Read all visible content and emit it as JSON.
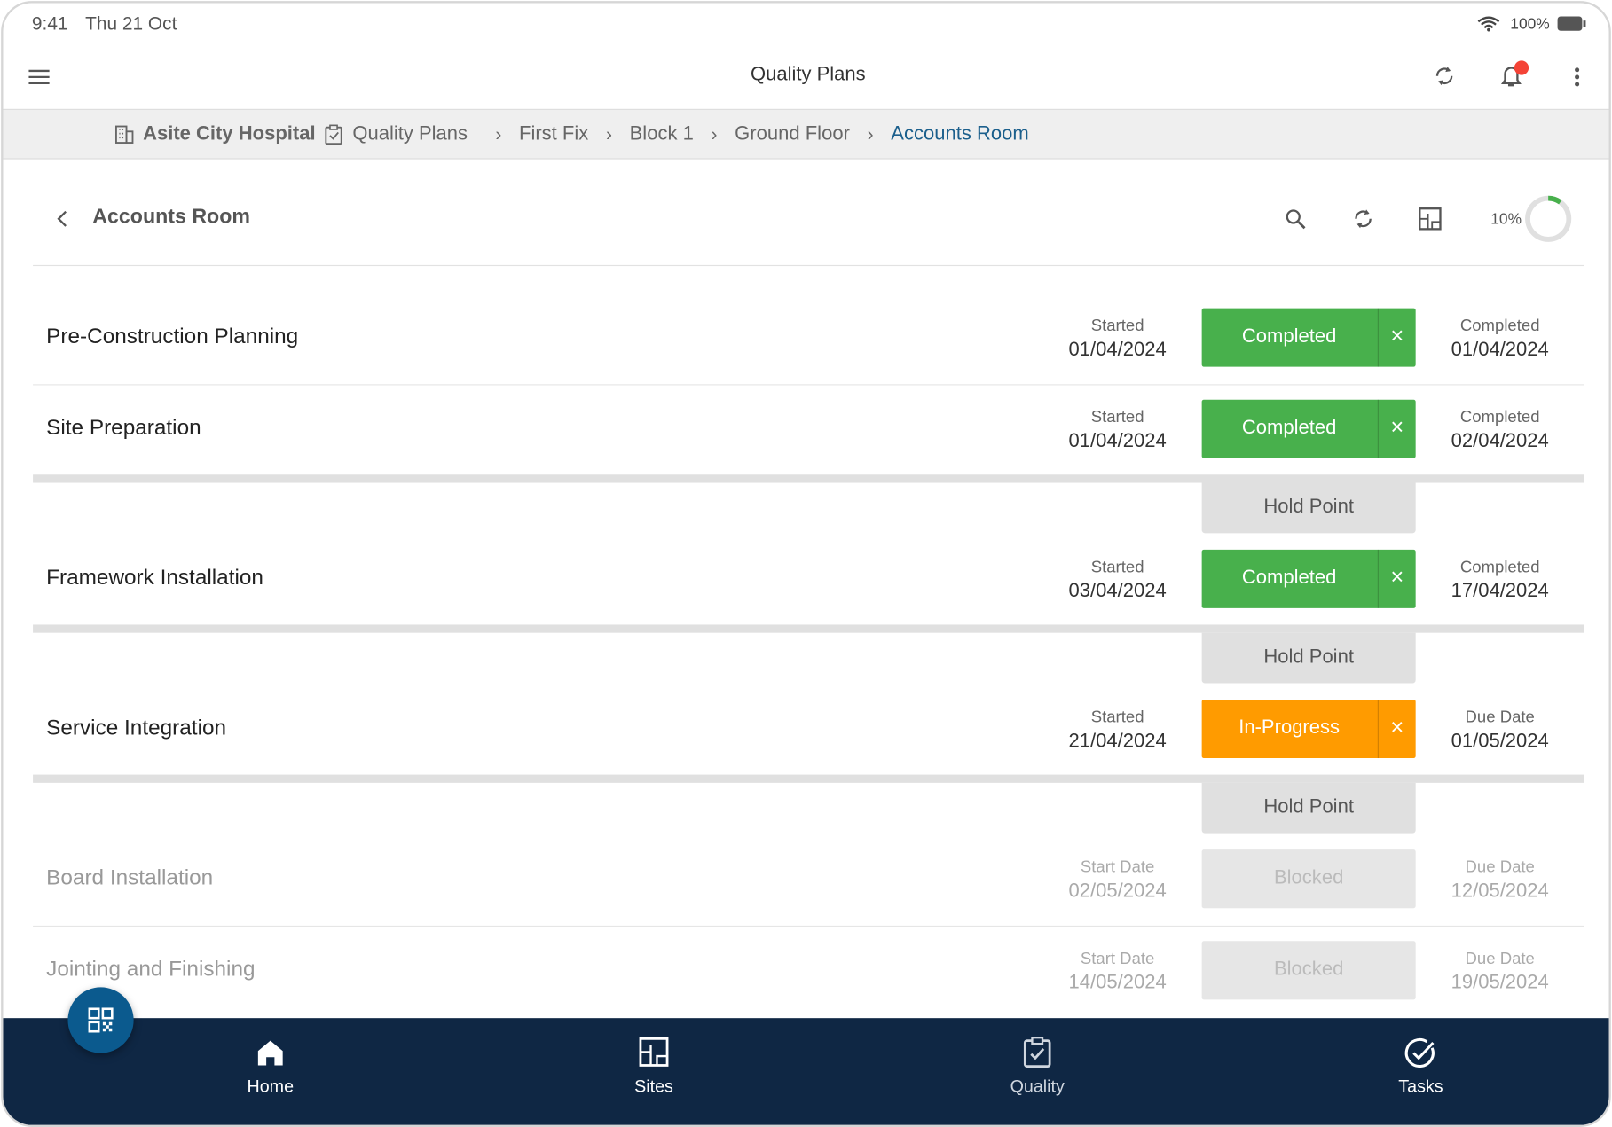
{
  "status_bar": {
    "time": "9:41",
    "date": "Thu 21 Oct",
    "battery": "100%"
  },
  "header": {
    "title": "Quality Plans"
  },
  "breadcrumb": [
    "Asite City Hospital",
    "Quality Plans",
    "First Fix",
    "Block 1",
    "Ground Floor",
    "Accounts Room"
  ],
  "subheader": {
    "title": "Accounts Room",
    "progress": {
      "value": 10,
      "label": "10%"
    }
  },
  "rows": [
    {
      "name": "Pre-Construction Planning",
      "start_label": "Started",
      "start_date": "01/04/2024",
      "status": "Completed",
      "color": "#48b04c",
      "end_label": "Completed",
      "end_date": "01/04/2024"
    },
    {
      "name": "Site Preparation",
      "start_label": "Started",
      "start_date": "01/04/2024",
      "status": "Completed",
      "color": "#48b04c",
      "end_label": "Completed",
      "end_date": "02/04/2024",
      "hold_point": "Hold Point"
    },
    {
      "name": "Framework Installation",
      "start_label": "Started",
      "start_date": "03/04/2024",
      "status": "Completed",
      "color": "#48b04c",
      "end_label": "Completed",
      "end_date": "17/04/2024",
      "hold_point": "Hold Point"
    },
    {
      "name": "Service Integration",
      "start_label": "Started",
      "start_date": "21/04/2024",
      "status": "In-Progress",
      "color": "#ff9b00",
      "end_label": "Due Date",
      "end_date": "01/05/2024",
      "hold_point": "Hold Point"
    },
    {
      "name": "Board Installation",
      "start_label": "Start Date",
      "start_date": "02/05/2024",
      "status": "Blocked",
      "color": "#e6e6e6",
      "end_label": "Due Date",
      "end_date": "12/05/2024"
    },
    {
      "name": "Jointing and Finishing",
      "start_label": "Start Date",
      "start_date": "14/05/2024",
      "status": "Blocked",
      "color": "#e6e6e6",
      "end_label": "Due Date",
      "end_date": "19/05/2024"
    }
  ],
  "nav": [
    "Home",
    "Sites",
    "Quality",
    "Tasks"
  ]
}
